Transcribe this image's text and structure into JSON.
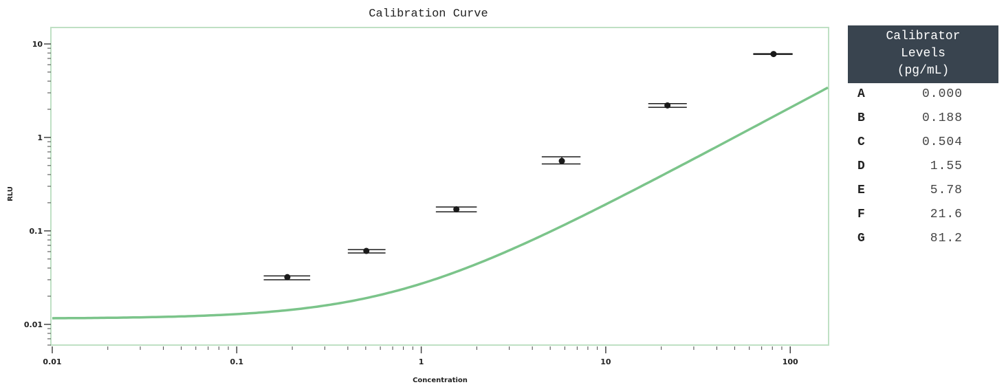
{
  "chart_data": {
    "type": "scatter",
    "title": "Calibration Curve",
    "xlabel": "Concentration",
    "ylabel": "RLU",
    "x_scale": "log",
    "y_scale": "log",
    "xlim": [
      0.01,
      160
    ],
    "ylim": [
      0.006,
      15
    ],
    "x_ticks": [
      {
        "value": 0.01,
        "label": "0.01"
      },
      {
        "value": 0.1,
        "label": "0.1"
      },
      {
        "value": 1,
        "label": "1"
      },
      {
        "value": 10,
        "label": "10"
      },
      {
        "value": 100,
        "label": "100"
      }
    ],
    "y_ticks": [
      {
        "value": 0.01,
        "label": "0.01"
      },
      {
        "value": 0.1,
        "label": "0.1"
      },
      {
        "value": 1,
        "label": "1"
      },
      {
        "value": 10,
        "label": "10"
      }
    ],
    "points": [
      {
        "x": 0.188,
        "y": 0.032,
        "y_low": 0.03,
        "y_high": 0.033,
        "x_low": 0.14,
        "x_high": 0.25
      },
      {
        "x": 0.504,
        "y": 0.061,
        "y_low": 0.058,
        "y_high": 0.063,
        "x_low": 0.4,
        "x_high": 0.64
      },
      {
        "x": 1.55,
        "y": 0.17,
        "y_low": 0.16,
        "y_high": 0.18,
        "x_low": 1.2,
        "x_high": 2.0
      },
      {
        "x": 5.78,
        "y": 0.56,
        "y_low": 0.52,
        "y_high": 0.62,
        "x_low": 4.5,
        "x_high": 7.3
      },
      {
        "x": 21.6,
        "y": 2.2,
        "y_low": 2.1,
        "y_high": 2.3,
        "x_low": 17,
        "x_high": 27.5
      },
      {
        "x": 81.2,
        "y": 7.8,
        "y_low": 7.8,
        "y_high": 7.8,
        "x_low": 63,
        "x_high": 103
      }
    ],
    "fit_curve": {
      "type": "4PL",
      "a": 0.0115,
      "d": 1000,
      "c": 34000,
      "b": 1.06
    },
    "colors": {
      "curve": "#7bc48a",
      "frame": "#bfe0c4",
      "markers": "#1a1a1a"
    },
    "grid": false
  },
  "table": {
    "header": "Calibrator\nLevels\n(pg/mL)",
    "rows": [
      {
        "level": "A",
        "value": "0.000"
      },
      {
        "level": "B",
        "value": "0.188"
      },
      {
        "level": "C",
        "value": "0.504"
      },
      {
        "level": "D",
        "value": "1.55"
      },
      {
        "level": "E",
        "value": "5.78"
      },
      {
        "level": "F",
        "value": "21.6"
      },
      {
        "level": "G",
        "value": "81.2"
      }
    ]
  }
}
